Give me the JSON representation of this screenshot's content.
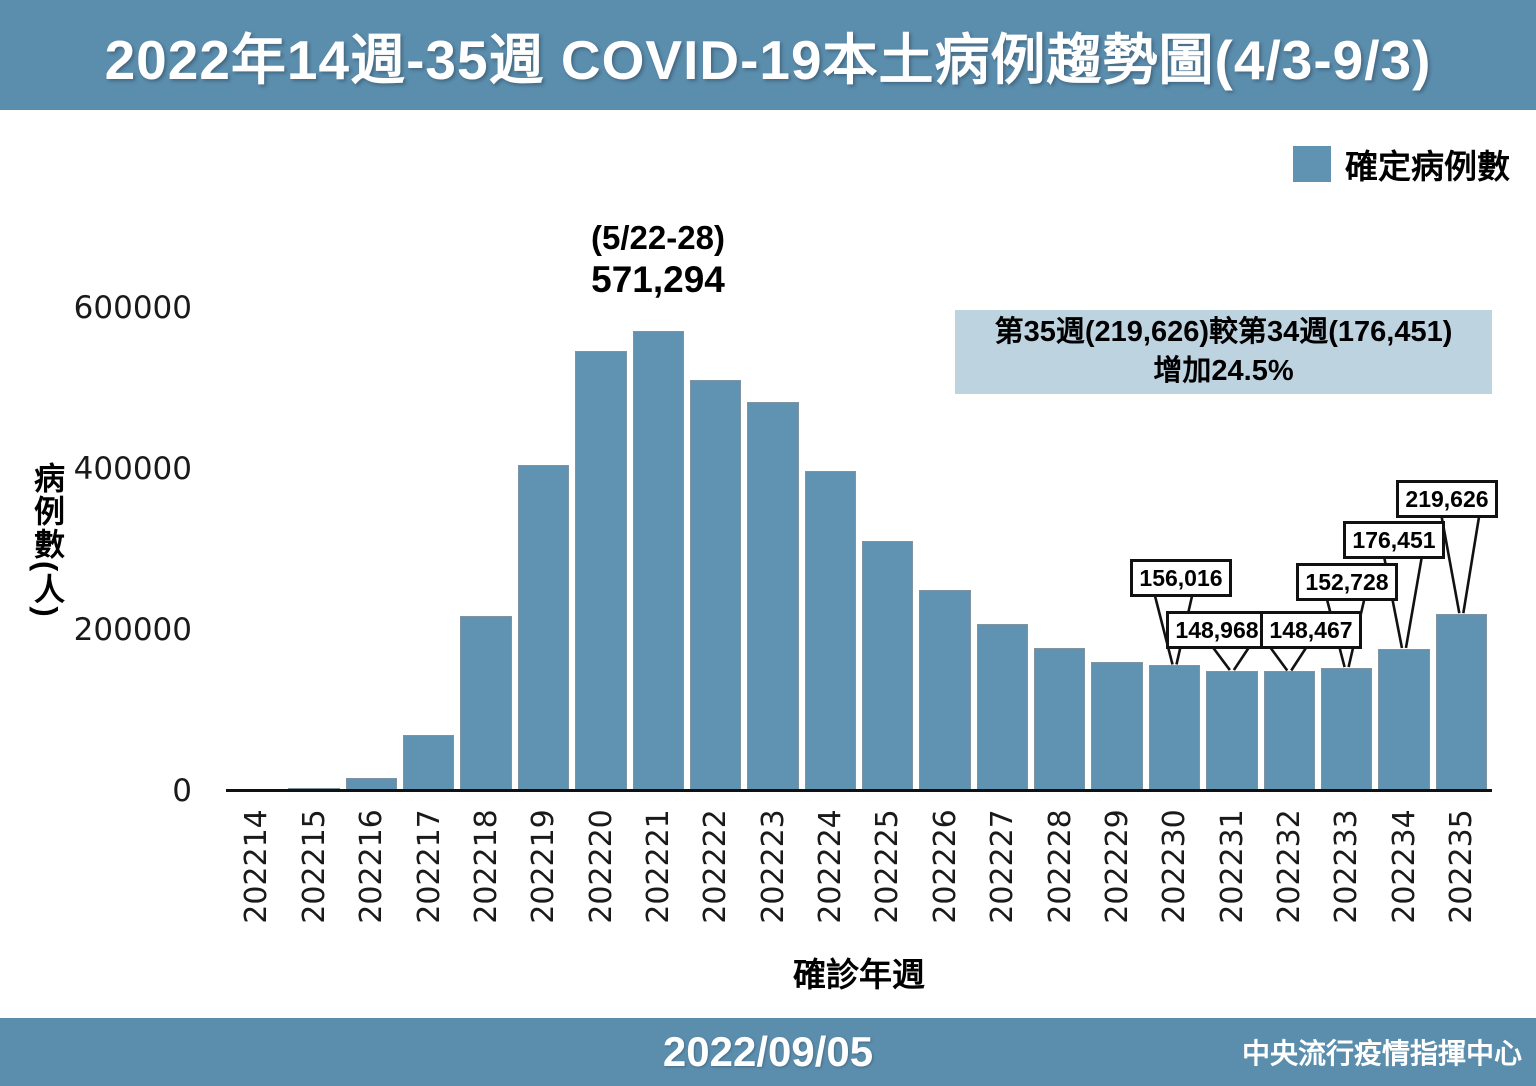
{
  "header": {
    "title": "2022年14週-35週 COVID-19本土病例趨勢圖(4/3-9/3)",
    "bg_color": "#5b8dad"
  },
  "legend": {
    "label": "確定病例數",
    "swatch_color": "#6092b2"
  },
  "chart_data": {
    "type": "bar",
    "xlabel": "確診年週",
    "ylabel": "病例數(人)",
    "ylim": [
      0,
      650000
    ],
    "yticks": [
      0,
      200000,
      400000,
      600000
    ],
    "ytick_labels": [
      "0",
      "200000",
      "400000",
      "600000"
    ],
    "grid": false,
    "bar_color": "#6092b2",
    "categories": [
      "202214",
      "202215",
      "202216",
      "202217",
      "202218",
      "202219",
      "202220",
      "202221",
      "202222",
      "202223",
      "202224",
      "202225",
      "202226",
      "202227",
      "202228",
      "202229",
      "202230",
      "202231",
      "202232",
      "202233",
      "202234",
      "202235"
    ],
    "values": [
      1000,
      4000,
      16000,
      70000,
      218000,
      405000,
      546000,
      571294,
      510000,
      483000,
      397000,
      311000,
      250000,
      207000,
      178000,
      160000,
      156016,
      148968,
      148467,
      152728,
      176451,
      219626
    ],
    "peak_annotation": {
      "category": "202221",
      "line1": "(5/22-28)",
      "line2": "571,294"
    },
    "callouts": [
      {
        "category": "202230",
        "label": "156,016"
      },
      {
        "category": "202231",
        "label": "148,968"
      },
      {
        "category": "202232",
        "label": "148,467"
      },
      {
        "category": "202233",
        "label": "152,728"
      },
      {
        "category": "202234",
        "label": "176,451"
      },
      {
        "category": "202235",
        "label": "219,626"
      }
    ],
    "comparison_note": {
      "line1": "第35週(219,626)較第34週(176,451)",
      "line2": "增加24.5%",
      "bg_color": "#bed3e0"
    }
  },
  "footer": {
    "date": "2022/09/05",
    "org": "中央流行疫情指揮中心",
    "bg_color": "#5b8dad"
  }
}
